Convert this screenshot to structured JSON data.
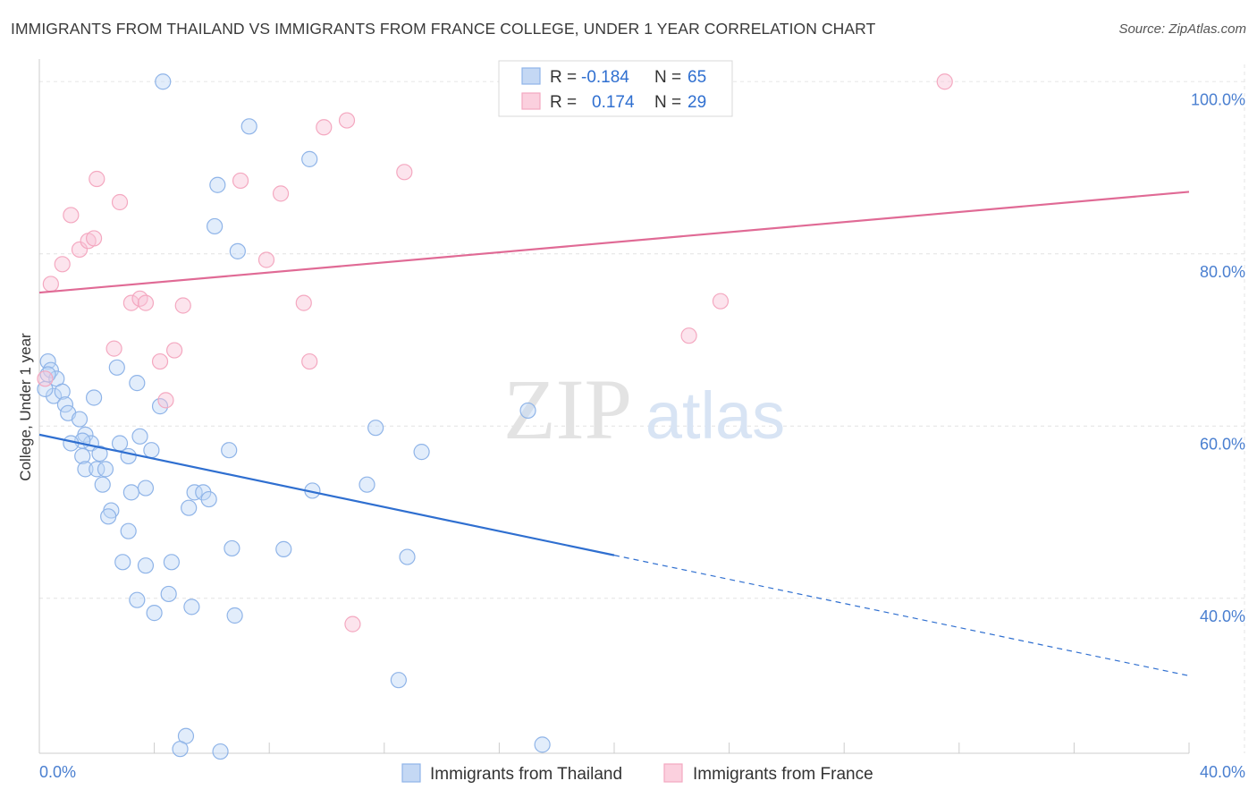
{
  "title": "IMMIGRANTS FROM THAILAND VS IMMIGRANTS FROM FRANCE COLLEGE, UNDER 1 YEAR CORRELATION CHART",
  "source": "Source: ZipAtlas.com",
  "watermark": {
    "zip": "ZIP",
    "atlas": "atlas"
  },
  "chart_data": {
    "type": "scatter",
    "xlabel": "",
    "ylabel": "College, Under 1 year",
    "xlim": [
      0,
      40
    ],
    "ylim": [
      22,
      102
    ],
    "x_ticks": [
      {
        "value": 0,
        "label": "0.0%"
      },
      {
        "value": 40,
        "label": "40.0%"
      }
    ],
    "y_ticks": [
      {
        "value": 40,
        "label": "40.0%"
      },
      {
        "value": 60,
        "label": "60.0%"
      },
      {
        "value": 80,
        "label": "80.0%"
      },
      {
        "value": 100,
        "label": "100.0%"
      }
    ],
    "grid": true,
    "legend_position": "top-center",
    "series": [
      {
        "name": "Immigrants from Thailand",
        "color": "#8fb4e8",
        "line_color": "#2f6fd0",
        "R": "-0.184",
        "N": "65",
        "trend": {
          "x0": 0,
          "y0": 59.0,
          "x1": 20,
          "y1": 45.0,
          "dash_to_x": 40,
          "dash_to_y": 31.0
        },
        "points": [
          [
            0.3,
            67.5
          ],
          [
            0.4,
            66.5
          ],
          [
            0.6,
            65.5
          ],
          [
            0.5,
            63.5
          ],
          [
            0.8,
            64.0
          ],
          [
            0.9,
            62.5
          ],
          [
            1.0,
            61.5
          ],
          [
            1.4,
            60.8
          ],
          [
            1.6,
            59.0
          ],
          [
            1.8,
            58.0
          ],
          [
            1.5,
            58.3
          ],
          [
            1.1,
            58.0
          ],
          [
            1.5,
            56.5
          ],
          [
            2.1,
            56.8
          ],
          [
            1.6,
            55.0
          ],
          [
            2.0,
            55.0
          ],
          [
            2.3,
            55.0
          ],
          [
            2.2,
            53.2
          ],
          [
            1.9,
            63.3
          ],
          [
            2.7,
            66.8
          ],
          [
            3.4,
            65.0
          ],
          [
            2.8,
            58.0
          ],
          [
            3.5,
            58.8
          ],
          [
            3.1,
            56.5
          ],
          [
            3.9,
            57.2
          ],
          [
            4.2,
            62.3
          ],
          [
            3.2,
            52.3
          ],
          [
            3.7,
            52.8
          ],
          [
            2.5,
            50.2
          ],
          [
            2.4,
            49.5
          ],
          [
            3.1,
            47.8
          ],
          [
            2.9,
            44.2
          ],
          [
            3.7,
            43.8
          ],
          [
            4.6,
            44.2
          ],
          [
            3.4,
            39.8
          ],
          [
            4.5,
            40.5
          ],
          [
            4.0,
            38.3
          ],
          [
            5.3,
            39.0
          ],
          [
            5.2,
            50.5
          ],
          [
            5.4,
            52.3
          ],
          [
            5.7,
            52.3
          ],
          [
            5.9,
            51.5
          ],
          [
            6.6,
            57.2
          ],
          [
            6.7,
            45.8
          ],
          [
            6.8,
            38.0
          ],
          [
            6.2,
            88.0
          ],
          [
            6.1,
            83.2
          ],
          [
            6.9,
            80.3
          ],
          [
            7.3,
            94.8
          ],
          [
            9.4,
            91.0
          ],
          [
            8.5,
            45.7
          ],
          [
            9.5,
            52.5
          ],
          [
            11.4,
            53.2
          ],
          [
            11.7,
            59.8
          ],
          [
            12.8,
            44.8
          ],
          [
            13.3,
            57.0
          ],
          [
            12.5,
            30.5
          ],
          [
            17.0,
            61.8
          ],
          [
            17.5,
            23.0
          ],
          [
            4.3,
            100.0
          ],
          [
            5.1,
            24.0
          ],
          [
            4.9,
            22.5
          ],
          [
            6.3,
            22.2
          ],
          [
            0.2,
            64.3
          ],
          [
            0.3,
            66.0
          ]
        ]
      },
      {
        "name": "Immigrants from France",
        "color": "#f4a8c0",
        "line_color": "#e06a95",
        "R": "0.174",
        "N": "29",
        "trend": {
          "x0": 0,
          "y0": 75.5,
          "x1": 40,
          "y1": 87.2
        },
        "points": [
          [
            0.4,
            76.5
          ],
          [
            0.8,
            78.8
          ],
          [
            1.1,
            84.5
          ],
          [
            1.4,
            80.5
          ],
          [
            1.7,
            81.5
          ],
          [
            1.9,
            81.8
          ],
          [
            2.0,
            88.7
          ],
          [
            2.8,
            86.0
          ],
          [
            2.6,
            69.0
          ],
          [
            3.2,
            74.3
          ],
          [
            3.5,
            74.8
          ],
          [
            3.7,
            74.3
          ],
          [
            4.2,
            67.5
          ],
          [
            4.4,
            63.0
          ],
          [
            4.7,
            68.8
          ],
          [
            5.0,
            74.0
          ],
          [
            7.0,
            88.5
          ],
          [
            7.9,
            79.3
          ],
          [
            8.4,
            87.0
          ],
          [
            9.2,
            74.3
          ],
          [
            9.4,
            67.5
          ],
          [
            9.9,
            94.7
          ],
          [
            10.7,
            95.5
          ],
          [
            10.9,
            37.0
          ],
          [
            12.7,
            89.5
          ],
          [
            22.6,
            70.5
          ],
          [
            23.7,
            74.5
          ],
          [
            31.5,
            100.0
          ],
          [
            0.2,
            65.5
          ]
        ]
      }
    ]
  },
  "legend": {
    "r_label": "R =",
    "n_label": "N ="
  }
}
